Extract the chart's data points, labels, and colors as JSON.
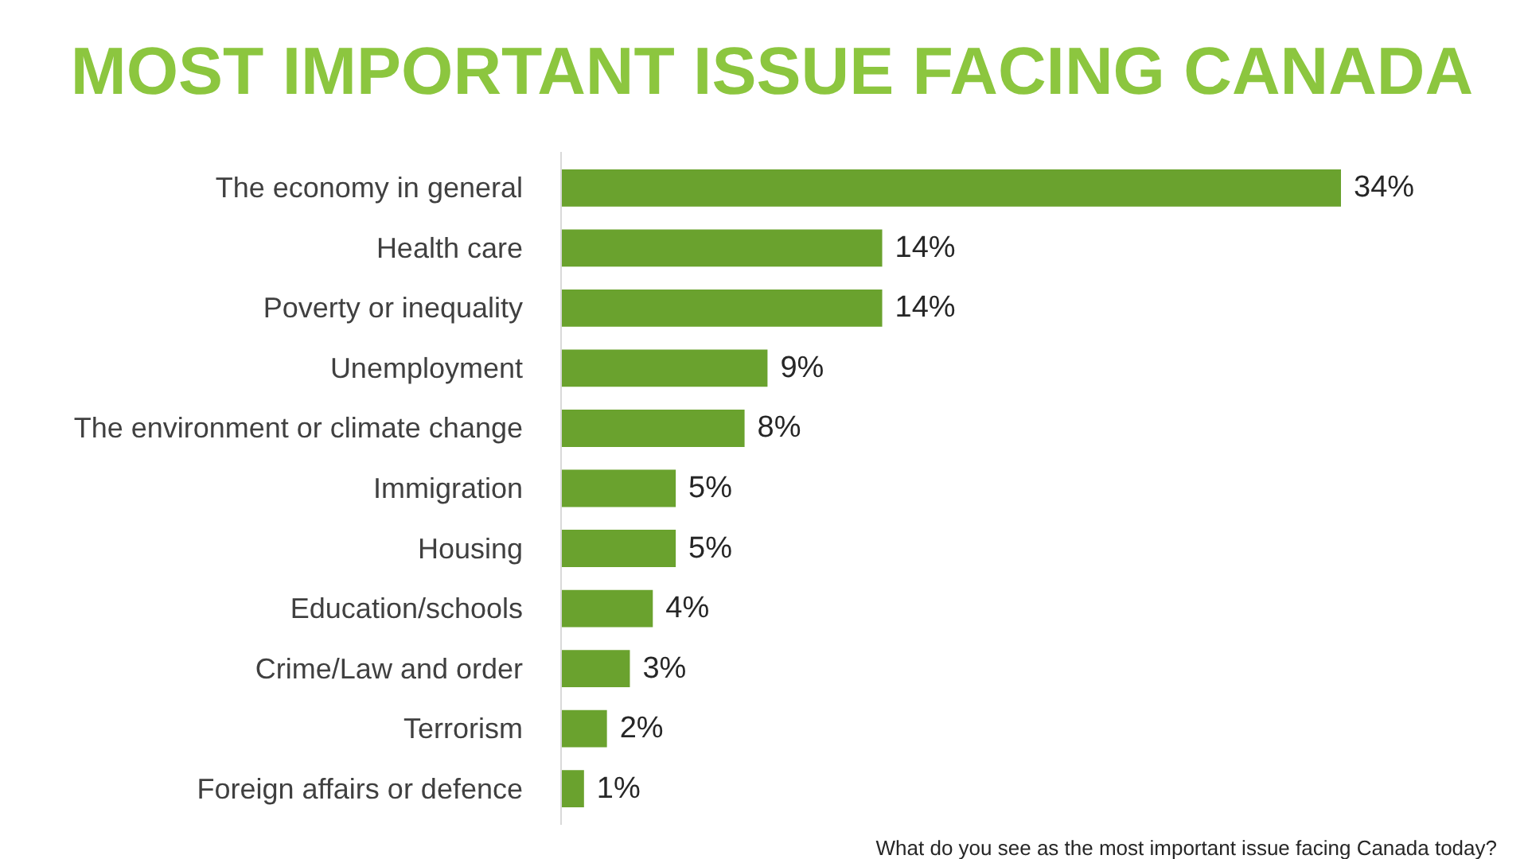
{
  "chart_data": {
    "type": "bar",
    "orientation": "horizontal",
    "title": "MOST IMPORTANT ISSUE FACING CANADA",
    "categories": [
      "The economy in general",
      "Health care",
      "Poverty or inequality",
      "Unemployment",
      "The environment or climate change",
      "Immigration",
      "Housing",
      "Education/schools",
      "Crime/Law and order",
      "Terrorism",
      "Foreign affairs or defence"
    ],
    "values": [
      34,
      14,
      14,
      9,
      8,
      5,
      5,
      4,
      3,
      2,
      1
    ],
    "value_labels": [
      "34%",
      "14%",
      "14%",
      "9%",
      "8%",
      "5%",
      "5%",
      "4%",
      "3%",
      "2%",
      "1%"
    ],
    "color": "#6aa22e",
    "annotations": [
      "What do you see as the most important issue facing Canada today?"
    ],
    "grid": false
  }
}
